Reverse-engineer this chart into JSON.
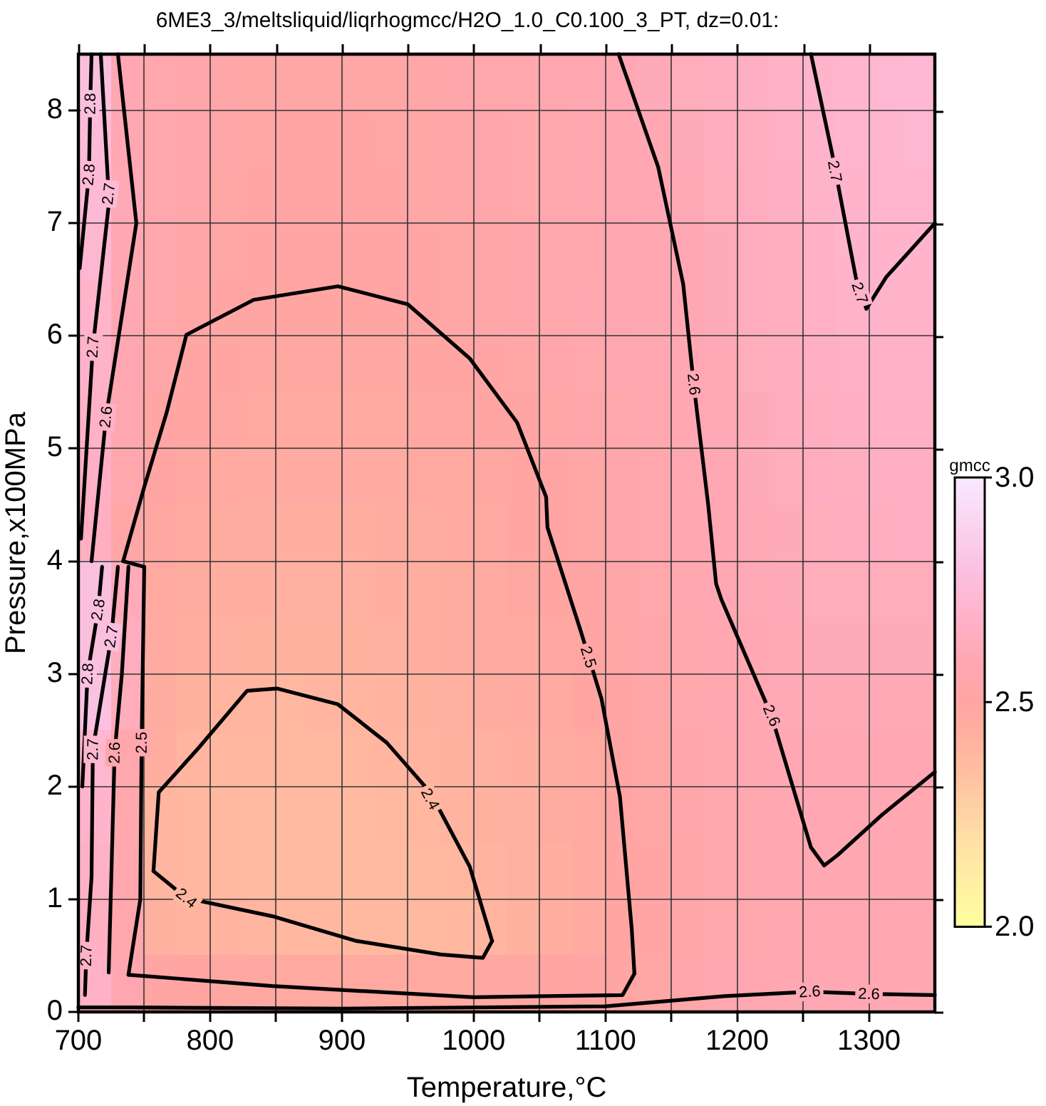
{
  "chart_data": {
    "type": "heatmap",
    "title": "6ME3_3/meltsliquid/liqrhogmcc/H2O_1.0_C0.100_3_PT, dz=0.01:",
    "xlabel": "Temperature,°C",
    "ylabel": "Pressure,x100MPa",
    "clabel": "gmcc",
    "x": [
      712.5,
      737.5,
      762.5,
      787.5,
      812.5,
      837.5,
      862.5,
      887.5,
      912.5,
      937.5,
      962.5,
      987.5,
      1012.5,
      1037.5,
      1062.5,
      1087.5,
      1112.5,
      1137.5,
      1162.5,
      1187.5,
      1212.5,
      1237.5,
      1262.5,
      1287.5,
      1312.5,
      1337.5
    ],
    "cells": [
      [
        2.78,
        2.59,
        2.56,
        2.54,
        2.53,
        2.52,
        2.52,
        2.52,
        2.52,
        2.52,
        2.53,
        2.54,
        2.55,
        2.56,
        2.57,
        2.58,
        2.6,
        2.62,
        2.63,
        2.65,
        2.66,
        2.68,
        2.7,
        2.71,
        2.72,
        2.73
      ],
      [
        2.75,
        2.6,
        2.56,
        2.54,
        2.53,
        2.52,
        2.51,
        2.51,
        2.51,
        2.52,
        2.52,
        2.53,
        2.54,
        2.55,
        2.56,
        2.57,
        2.59,
        2.6,
        2.62,
        2.64,
        2.65,
        2.67,
        2.69,
        2.71,
        2.71,
        2.72
      ],
      [
        2.74,
        2.61,
        2.56,
        2.54,
        2.52,
        2.51,
        2.51,
        2.51,
        2.51,
        2.51,
        2.52,
        2.53,
        2.54,
        2.55,
        2.56,
        2.57,
        2.58,
        2.6,
        2.61,
        2.63,
        2.64,
        2.66,
        2.69,
        2.7,
        2.71,
        2.71
      ],
      [
        2.72,
        2.6,
        2.56,
        2.53,
        2.52,
        2.51,
        2.5,
        2.5,
        2.5,
        2.51,
        2.51,
        2.52,
        2.53,
        2.54,
        2.55,
        2.56,
        2.57,
        2.59,
        2.6,
        2.62,
        2.64,
        2.65,
        2.67,
        2.7,
        2.7,
        2.7
      ],
      [
        2.7,
        2.59,
        2.55,
        2.52,
        2.5,
        2.5,
        2.49,
        2.49,
        2.49,
        2.5,
        2.51,
        2.52,
        2.53,
        2.54,
        2.55,
        2.57,
        2.58,
        2.59,
        2.6,
        2.62,
        2.64,
        2.65,
        2.67,
        2.69,
        2.69,
        2.69
      ],
      [
        2.69,
        2.58,
        2.53,
        2.5,
        2.49,
        2.48,
        2.48,
        2.48,
        2.48,
        2.48,
        2.49,
        2.49,
        2.51,
        2.52,
        2.54,
        2.55,
        2.57,
        2.58,
        2.6,
        2.61,
        2.63,
        2.64,
        2.66,
        2.67,
        2.68,
        2.68
      ],
      [
        2.68,
        2.57,
        2.5,
        2.49,
        2.48,
        2.47,
        2.47,
        2.47,
        2.47,
        2.47,
        2.48,
        2.48,
        2.49,
        2.5,
        2.52,
        2.54,
        2.55,
        2.57,
        2.59,
        2.61,
        2.62,
        2.64,
        2.65,
        2.66,
        2.67,
        2.67
      ],
      [
        2.67,
        2.56,
        2.5,
        2.48,
        2.47,
        2.46,
        2.46,
        2.46,
        2.46,
        2.46,
        2.47,
        2.47,
        2.48,
        2.49,
        2.51,
        2.52,
        2.54,
        2.56,
        2.58,
        2.6,
        2.62,
        2.63,
        2.64,
        2.65,
        2.66,
        2.66
      ],
      [
        2.66,
        2.52,
        2.48,
        2.46,
        2.45,
        2.45,
        2.44,
        2.44,
        2.44,
        2.45,
        2.45,
        2.46,
        2.47,
        2.49,
        2.5,
        2.52,
        2.54,
        2.56,
        2.58,
        2.6,
        2.61,
        2.62,
        2.63,
        2.64,
        2.65,
        2.66
      ],
      [
        2.78,
        2.62,
        2.47,
        2.45,
        2.44,
        2.44,
        2.43,
        2.43,
        2.43,
        2.44,
        2.44,
        2.45,
        2.46,
        2.48,
        2.49,
        2.51,
        2.53,
        2.55,
        2.57,
        2.6,
        2.61,
        2.62,
        2.63,
        2.63,
        2.63,
        2.63
      ],
      [
        2.78,
        2.64,
        2.46,
        2.44,
        2.43,
        2.42,
        2.42,
        2.42,
        2.42,
        2.43,
        2.44,
        2.45,
        2.46,
        2.47,
        2.48,
        2.5,
        2.52,
        2.54,
        2.56,
        2.58,
        2.6,
        2.61,
        2.62,
        2.62,
        2.62,
        2.62
      ],
      [
        2.79,
        2.63,
        2.45,
        2.42,
        2.4,
        2.4,
        2.39,
        2.4,
        2.4,
        2.41,
        2.42,
        2.43,
        2.45,
        2.46,
        2.47,
        2.49,
        2.51,
        2.53,
        2.55,
        2.57,
        2.59,
        2.61,
        2.61,
        2.61,
        2.61,
        2.61
      ],
      [
        2.72,
        2.56,
        2.44,
        2.4,
        2.39,
        2.39,
        2.38,
        2.38,
        2.39,
        2.4,
        2.41,
        2.42,
        2.43,
        2.44,
        2.45,
        2.47,
        2.5,
        2.52,
        2.54,
        2.56,
        2.58,
        2.6,
        2.6,
        2.6,
        2.6,
        2.6
      ],
      [
        2.7,
        2.56,
        2.4,
        2.39,
        2.38,
        2.37,
        2.37,
        2.37,
        2.37,
        2.38,
        2.39,
        2.41,
        2.42,
        2.43,
        2.45,
        2.47,
        2.5,
        2.52,
        2.54,
        2.56,
        2.57,
        2.59,
        2.6,
        2.6,
        2.6,
        2.59
      ],
      [
        2.68,
        2.56,
        2.4,
        2.39,
        2.38,
        2.37,
        2.37,
        2.37,
        2.37,
        2.37,
        2.38,
        2.39,
        2.41,
        2.43,
        2.44,
        2.46,
        2.49,
        2.51,
        2.53,
        2.55,
        2.57,
        2.58,
        2.59,
        2.59,
        2.59,
        2.58
      ],
      [
        2.66,
        2.56,
        2.42,
        2.41,
        2.41,
        2.4,
        2.39,
        2.39,
        2.38,
        2.38,
        2.38,
        2.39,
        2.4,
        2.42,
        2.44,
        2.46,
        2.49,
        2.51,
        2.53,
        2.55,
        2.56,
        2.57,
        2.58,
        2.58,
        2.58,
        2.58
      ],
      [
        2.68,
        2.58,
        2.5,
        2.49,
        2.48,
        2.48,
        2.47,
        2.47,
        2.47,
        2.47,
        2.47,
        2.47,
        2.48,
        2.48,
        2.49,
        2.5,
        2.5,
        2.52,
        2.54,
        2.57,
        2.58,
        2.59,
        2.6,
        2.6,
        2.59,
        2.59
      ]
    ],
    "clim": [
      2.0,
      3.0
    ],
    "cticks": [
      {
        "value": 2.0,
        "label": "2.0"
      },
      {
        "value": 2.5,
        "label": "2.5"
      },
      {
        "value": 3.0,
        "label": "3.0"
      }
    ],
    "series": [
      {
        "type": "line",
        "color": "#000000",
        "x": [
          757,
          761,
          791,
          828,
          851,
          897,
          934,
          967,
          997,
          1014
        ],
        "values": [
          1.25,
          1.95,
          2.34,
          2.85,
          2.87,
          2.73,
          2.39,
          1.95,
          1.29,
          0.63
        ]
      },
      {
        "type": "line",
        "color": "#000000",
        "x": [
          757,
          760,
          782,
          847,
          911,
          975,
          1007,
          1014
        ],
        "values": [
          1.25,
          1.22,
          1.01,
          0.85,
          0.63,
          0.51,
          0.48,
          0.63
        ]
      },
      {
        "type": "line",
        "color": "#000000",
        "x": [
          738,
          747,
          748,
          750
        ],
        "values": [
          0.33,
          1.0,
          2.39,
          3.95
        ]
      },
      {
        "type": "line",
        "color": "#000000",
        "x": [
          734,
          750
        ],
        "values": [
          4.0,
          3.95
        ]
      },
      {
        "type": "line",
        "color": "#000000",
        "x": [
          734,
          750,
          767,
          782,
          833,
          897,
          950,
          997,
          1033,
          1055,
          1056,
          1081,
          1097,
          1111,
          1120,
          1122
        ],
        "values": [
          4.0,
          4.66,
          5.32,
          6.01,
          6.32,
          6.44,
          6.28,
          5.8,
          5.23,
          4.57,
          4.3,
          3.39,
          2.78,
          1.91,
          0.73,
          0.34
        ]
      },
      {
        "type": "line",
        "color": "#000000",
        "x": [
          738,
          847,
          1000,
          1113,
          1122
        ],
        "values": [
          0.33,
          0.23,
          0.13,
          0.15,
          0.34
        ]
      },
      {
        "type": "line",
        "color": "#000000",
        "x": [
          1110,
          1140,
          1159,
          1167,
          1178,
          1184,
          1188,
          1226,
          1256,
          1266,
          1276,
          1310,
          1350
        ],
        "values": [
          8.5,
          7.5,
          6.46,
          5.57,
          4.5,
          3.8,
          3.66,
          2.63,
          1.46,
          1.3,
          1.39,
          1.75,
          2.13
        ]
      },
      {
        "type": "line",
        "color": "#000000",
        "x": [
          1256,
          1272,
          1290,
          1298,
          1313,
          1350
        ],
        "values": [
          8.5,
          7.62,
          6.52,
          6.24,
          6.52,
          7.0
        ]
      },
      {
        "type": "line",
        "color": "#000000",
        "x": [
          710,
          721,
          744,
          730
        ],
        "values": [
          4.0,
          5.28,
          7.0,
          8.5
        ]
      },
      {
        "type": "line",
        "color": "#000000",
        "x": [
          702,
          711,
          723
        ],
        "values": [
          4.2,
          5.9,
          7.16
        ]
      },
      {
        "type": "line",
        "color": "#000000",
        "x": [
          717,
          722.5
        ],
        "values": [
          8.5,
          7.36
        ]
      },
      {
        "type": "line",
        "color": "#000000",
        "x": [
          701,
          708,
          709,
          710
        ],
        "values": [
          6.6,
          7.43,
          8.06,
          8.5
        ]
      },
      {
        "type": "line",
        "color": "#000000",
        "x": [
          700,
          741,
          900,
          1100,
          1190,
          1255,
          1300,
          1350
        ],
        "values": [
          0.04,
          0.04,
          0.03,
          0.05,
          0.14,
          0.18,
          0.16,
          0.15
        ]
      },
      {
        "type": "line",
        "color": "#000000",
        "x": [
          703,
          707,
          715,
          718
        ],
        "values": [
          2.0,
          3.0,
          3.57,
          3.95
        ]
      },
      {
        "type": "line",
        "color": "#000000",
        "x": [
          705,
          706,
          710,
          711,
          725,
          730
        ],
        "values": [
          0.15,
          0.5,
          1.2,
          2.33,
          3.33,
          3.95
        ]
      },
      {
        "type": "line",
        "color": "#000000",
        "x": [
          723,
          725,
          727.5,
          733,
          738
        ],
        "values": [
          0.35,
          1.2,
          2.3,
          3.0,
          3.95
        ]
      }
    ],
    "annotations": [
      {
        "text": "2.4",
        "x": 782,
        "y": 1.01
      },
      {
        "text": "2.4",
        "x": 967,
        "y": 1.89
      },
      {
        "text": "2.5",
        "x": 1087,
        "y": 3.15
      },
      {
        "text": "2.5",
        "x": 748,
        "y": 2.39
      },
      {
        "text": "2.6",
        "x": 1167,
        "y": 5.57
      },
      {
        "text": "2.6",
        "x": 1226,
        "y": 2.63
      },
      {
        "text": "2.7",
        "x": 1274,
        "y": 7.46
      },
      {
        "text": "2.7",
        "x": 1293,
        "y": 6.38
      },
      {
        "text": "2.6",
        "x": 1255,
        "y": 0.18
      },
      {
        "text": "2.6",
        "x": 1300,
        "y": 0.16
      },
      {
        "text": "2.8",
        "x": 709,
        "y": 8.06
      },
      {
        "text": "2.8",
        "x": 708,
        "y": 7.43
      },
      {
        "text": "2.7",
        "x": 723,
        "y": 7.26
      },
      {
        "text": "2.7",
        "x": 711,
        "y": 5.9
      },
      {
        "text": "2.6",
        "x": 721,
        "y": 5.28
      },
      {
        "text": "2.8",
        "x": 715,
        "y": 3.57
      },
      {
        "text": "2.7",
        "x": 725,
        "y": 3.33
      },
      {
        "text": "2.8",
        "x": 707,
        "y": 3.0
      },
      {
        "text": "2.7",
        "x": 711,
        "y": 2.33
      },
      {
        "text": "2.6",
        "x": 727.5,
        "y": 2.3
      },
      {
        "text": "2.7",
        "x": 706,
        "y": 0.5
      }
    ],
    "xlim": [
      700,
      1350
    ],
    "xticks": [
      700,
      {
        "value": 750,
        "label": null
      },
      800,
      {
        "value": 850,
        "label": null
      },
      900,
      {
        "value": 950,
        "label": null
      },
      1000,
      {
        "value": 1050,
        "label": null
      },
      1100,
      {
        "value": 1150,
        "label": null
      },
      1200,
      {
        "value": 1250,
        "label": null
      },
      1300
    ],
    "ylim": [
      0,
      8.5
    ],
    "yticks": [
      0,
      1,
      2,
      3,
      4,
      5,
      6,
      7,
      8
    ],
    "grid": true
  }
}
